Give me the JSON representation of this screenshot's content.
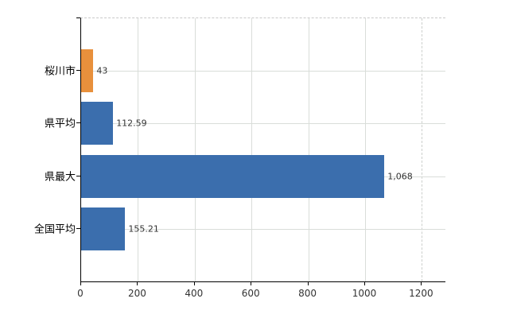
{
  "chart_data": {
    "type": "bar",
    "orientation": "horizontal",
    "title": "",
    "xlabel": "",
    "ylabel": "",
    "categories": [
      "桜川市",
      "県平均",
      "県最大",
      "全国平均"
    ],
    "values": [
      43,
      112.59,
      1068,
      155.21
    ],
    "value_labels": [
      "43",
      "112.59",
      "1,068",
      "155.21"
    ],
    "bar_colors": [
      "#e8903c",
      "#3b6ead",
      "#3b6ead",
      "#3b6ead"
    ],
    "highlight_color": "#e8903c",
    "base_color": "#3b6ead",
    "xlim": [
      0,
      1283
    ],
    "x_ticks": [
      0,
      200,
      400,
      600,
      800,
      1000,
      1200
    ],
    "x_tick_labels": [
      "0",
      "200",
      "400",
      "600",
      "800",
      "1000",
      "1200"
    ],
    "grid": true,
    "grid_color": "#d9ddd9",
    "legend": "none"
  }
}
